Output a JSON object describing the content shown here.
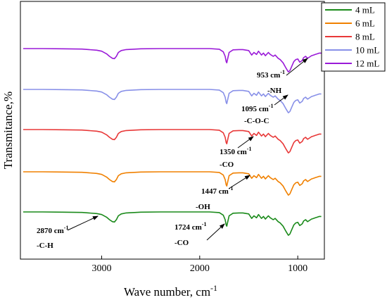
{
  "chart_data": {
    "type": "line",
    "xlabel": "Wave number, cm",
    "xlabel_sup": "-1",
    "ylabel": "Transmitance,%",
    "xlim": [
      3800,
      750
    ],
    "x_ticks": [
      3000,
      2000,
      1000
    ],
    "x_tick_labels": [
      "3000",
      "2000",
      "1000"
    ],
    "y_ticks_shown": false,
    "legend_position": "top-right",
    "x": [
      3800,
      3600,
      3400,
      3200,
      3050,
      3000,
      2950,
      2920,
      2890,
      2870,
      2850,
      2830,
      2800,
      2750,
      2600,
      2400,
      2200,
      2000,
      1900,
      1800,
      1760,
      1740,
      1730,
      1724,
      1718,
      1700,
      1660,
      1600,
      1560,
      1500,
      1470,
      1447,
      1420,
      1400,
      1370,
      1350,
      1330,
      1300,
      1280,
      1250,
      1230,
      1200,
      1180,
      1150,
      1120,
      1100,
      1095,
      1080,
      1060,
      1040,
      1020,
      1000,
      980,
      960,
      953,
      940,
      920,
      900,
      880,
      860,
      840,
      820,
      800,
      780,
      760
    ],
    "series": [
      {
        "name": "4 mL",
        "color": "#1a8a1a",
        "offset": 0,
        "values": [
          0,
          0,
          -0.3,
          -0.8,
          -2.5,
          -4,
          -8,
          -12,
          -15,
          -15.5,
          -12,
          -6,
          -3,
          -1.5,
          -0.3,
          0,
          0,
          0,
          0,
          -1,
          -5,
          -12,
          -20,
          -22,
          -18,
          -6,
          -2,
          -1.5,
          -1.5,
          -3,
          -10,
          -6,
          -9,
          -4,
          -10,
          -7,
          -11,
          -6,
          -9,
          -12,
          -10,
          -15,
          -17,
          -22,
          -30,
          -35,
          -36,
          -34,
          -27,
          -20,
          -17,
          -16,
          -21,
          -19,
          -18,
          -14,
          -12,
          -15,
          -13,
          -11,
          -10,
          -9,
          -8,
          -7,
          -7
        ]
      },
      {
        "name": "6 mL",
        "color": "#f08000",
        "offset": 57,
        "values": [
          0,
          0,
          -0.3,
          -0.8,
          -2.5,
          -4,
          -8,
          -12,
          -15,
          -15.5,
          -12,
          -6,
          -3,
          -1.5,
          -0.3,
          0,
          0,
          0,
          0,
          -1,
          -5,
          -12,
          -20,
          -22,
          -18,
          -6,
          -2,
          -1.5,
          -1.5,
          -3,
          -10,
          -6,
          -9,
          -4,
          -10,
          -7,
          -11,
          -6,
          -9,
          -12,
          -10,
          -15,
          -17,
          -22,
          -30,
          -35,
          -36,
          -34,
          -27,
          -20,
          -17,
          -16,
          -21,
          -19,
          -18,
          -14,
          -12,
          -15,
          -13,
          -11,
          -10,
          -9,
          -8,
          -7,
          -7
        ]
      },
      {
        "name": "8 mL",
        "color": "#e83838",
        "offset": 117,
        "values": [
          0,
          0,
          -0.3,
          -0.8,
          -2.5,
          -4,
          -8,
          -12,
          -15,
          -15.5,
          -12,
          -6,
          -3,
          -1.5,
          -0.3,
          0,
          0,
          0,
          0,
          -1,
          -5,
          -12,
          -20,
          -22,
          -18,
          -6,
          -2,
          -1.5,
          -1.5,
          -3,
          -10,
          -6,
          -9,
          -4,
          -10,
          -7,
          -11,
          -6,
          -9,
          -12,
          -10,
          -15,
          -17,
          -22,
          -30,
          -35,
          -36,
          -34,
          -27,
          -20,
          -17,
          -16,
          -21,
          -19,
          -18,
          -14,
          -12,
          -15,
          -13,
          -11,
          -10,
          -9,
          -8,
          -7,
          -7
        ]
      },
      {
        "name": "10 mL",
        "color": "#8890e8",
        "offset": 174,
        "values": [
          0,
          0,
          -0.3,
          -0.8,
          -2.5,
          -4,
          -8,
          -12,
          -15,
          -15.5,
          -12,
          -6,
          -3,
          -1.5,
          -0.3,
          0,
          0,
          0,
          0,
          -1,
          -5,
          -12,
          -20,
          -22,
          -18,
          -6,
          -2,
          -1.5,
          -1.5,
          -3,
          -10,
          -6,
          -9,
          -4,
          -10,
          -7,
          -11,
          -6,
          -9,
          -12,
          -10,
          -15,
          -17,
          -22,
          -30,
          -35,
          -36,
          -34,
          -27,
          -20,
          -17,
          -16,
          -21,
          -19,
          -18,
          -14,
          -12,
          -15,
          -13,
          -11,
          -10,
          -9,
          -8,
          -7,
          -7
        ]
      },
      {
        "name": "12 mL",
        "color": "#9a1ad8",
        "offset": 232,
        "values": [
          0,
          0,
          -0.3,
          -0.8,
          -2.5,
          -4,
          -8,
          -12,
          -15,
          -15.5,
          -12,
          -6,
          -3,
          -1.5,
          -0.3,
          0,
          0,
          0,
          0,
          -1,
          -5,
          -12,
          -20,
          -22,
          -18,
          -6,
          -2,
          -1.5,
          -1.5,
          -3,
          -10,
          -6,
          -9,
          -4,
          -10,
          -7,
          -11,
          -6,
          -9,
          -12,
          -10,
          -15,
          -17,
          -22,
          -30,
          -35,
          -36,
          -34,
          -27,
          -20,
          -17,
          -16,
          -21,
          -19,
          -18,
          -14,
          -12,
          -15,
          -13,
          -11,
          -10,
          -9,
          -8,
          -7,
          -7
        ]
      }
    ],
    "annotations": [
      {
        "id": "953",
        "label": "953 cm",
        "sup": "-1",
        "group": "",
        "x": 953,
        "series": 4
      },
      {
        "id": "1095",
        "label": "1095 cm",
        "sup": "-1",
        "group": "-C-O-C",
        "x": 1095,
        "series": 3
      },
      {
        "id": "nh",
        "label": "",
        "sup": "",
        "group": "-NH",
        "x": 1230,
        "series": 3
      },
      {
        "id": "1350",
        "label": "1350 cm",
        "sup": "-1",
        "group": "-CO",
        "x": 1350,
        "series": 2
      },
      {
        "id": "1447",
        "label": "1447 cm",
        "sup": "-1",
        "group": "-OH",
        "x": 1447,
        "series": 1
      },
      {
        "id": "1724",
        "label": "1724 cm",
        "sup": "-1",
        "group": "-CO",
        "x": 1724,
        "series": 0
      },
      {
        "id": "2870",
        "label": "2870 cm",
        "sup": "-1",
        "group": "-C-H",
        "x": 2870,
        "series": 0
      }
    ]
  }
}
